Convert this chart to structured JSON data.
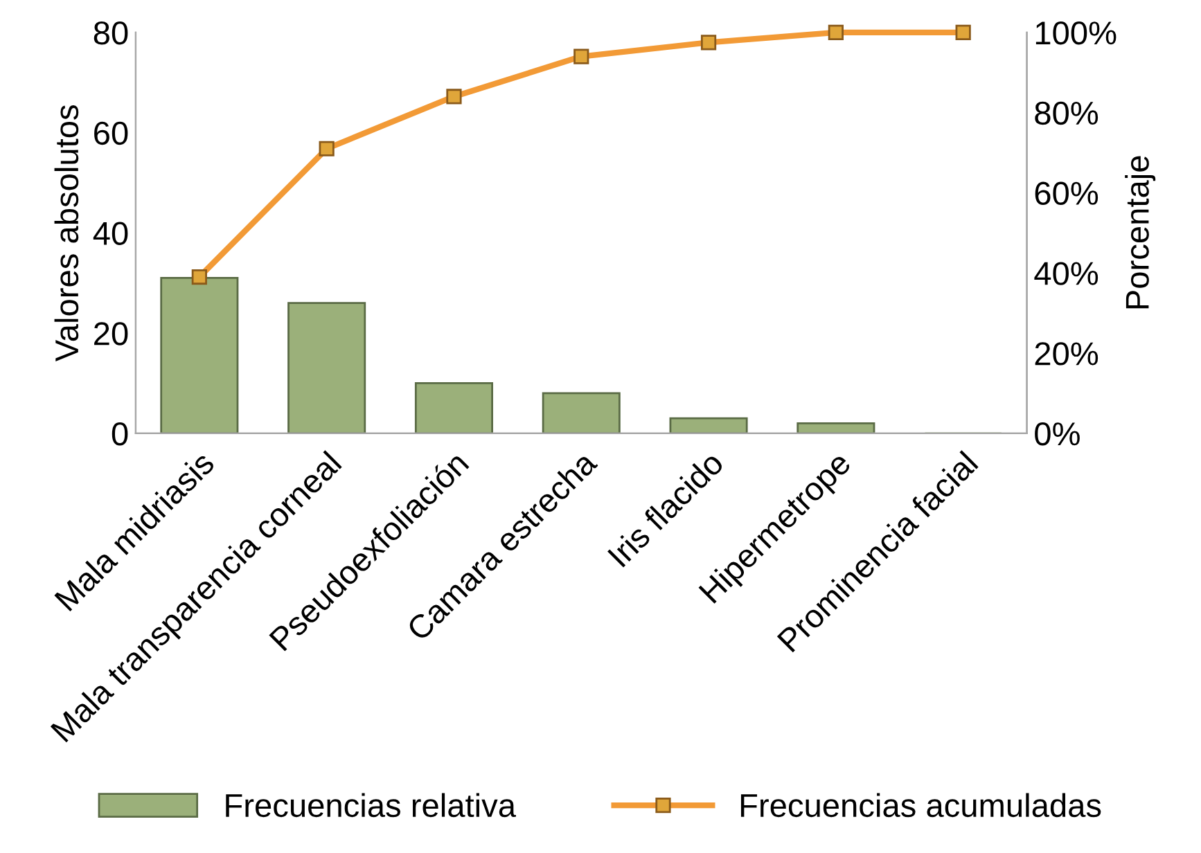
{
  "chart_data": {
    "type": "bar",
    "ylabel": "Valores absolutos",
    "y2label": "Porcentaje",
    "categories": [
      "Mala midriasis",
      "Mala transparencia corneal",
      "Pseudoexfoliación",
      "Camara estrecha",
      "Iris flacido",
      "Hipermetrope",
      "Prominencia facial"
    ],
    "series": [
      {
        "name": "Frecuencias relativa",
        "color": "#9bb07a",
        "values": [
          31,
          26,
          10,
          8,
          3,
          2,
          0
        ]
      },
      {
        "name": "Frecuencias acumuladas",
        "type": "line",
        "axis": "y2",
        "color": "#f29a36",
        "marker": "square",
        "values": [
          39,
          71,
          84,
          94,
          97.5,
          100,
          100
        ]
      }
    ],
    "ylim": [
      0,
      80
    ],
    "yticks": [
      0,
      20,
      40,
      60,
      80
    ],
    "y2lim": [
      0,
      100
    ],
    "y2ticks": [
      {
        "value": 0,
        "label": "0%"
      },
      {
        "value": 20,
        "label": "20%"
      },
      {
        "value": 40,
        "label": "40%"
      },
      {
        "value": 60,
        "label": "60%"
      },
      {
        "value": 80,
        "label": "80%"
      },
      {
        "value": 100,
        "label": "100%"
      }
    ],
    "grid": false,
    "legend": "bottom"
  }
}
